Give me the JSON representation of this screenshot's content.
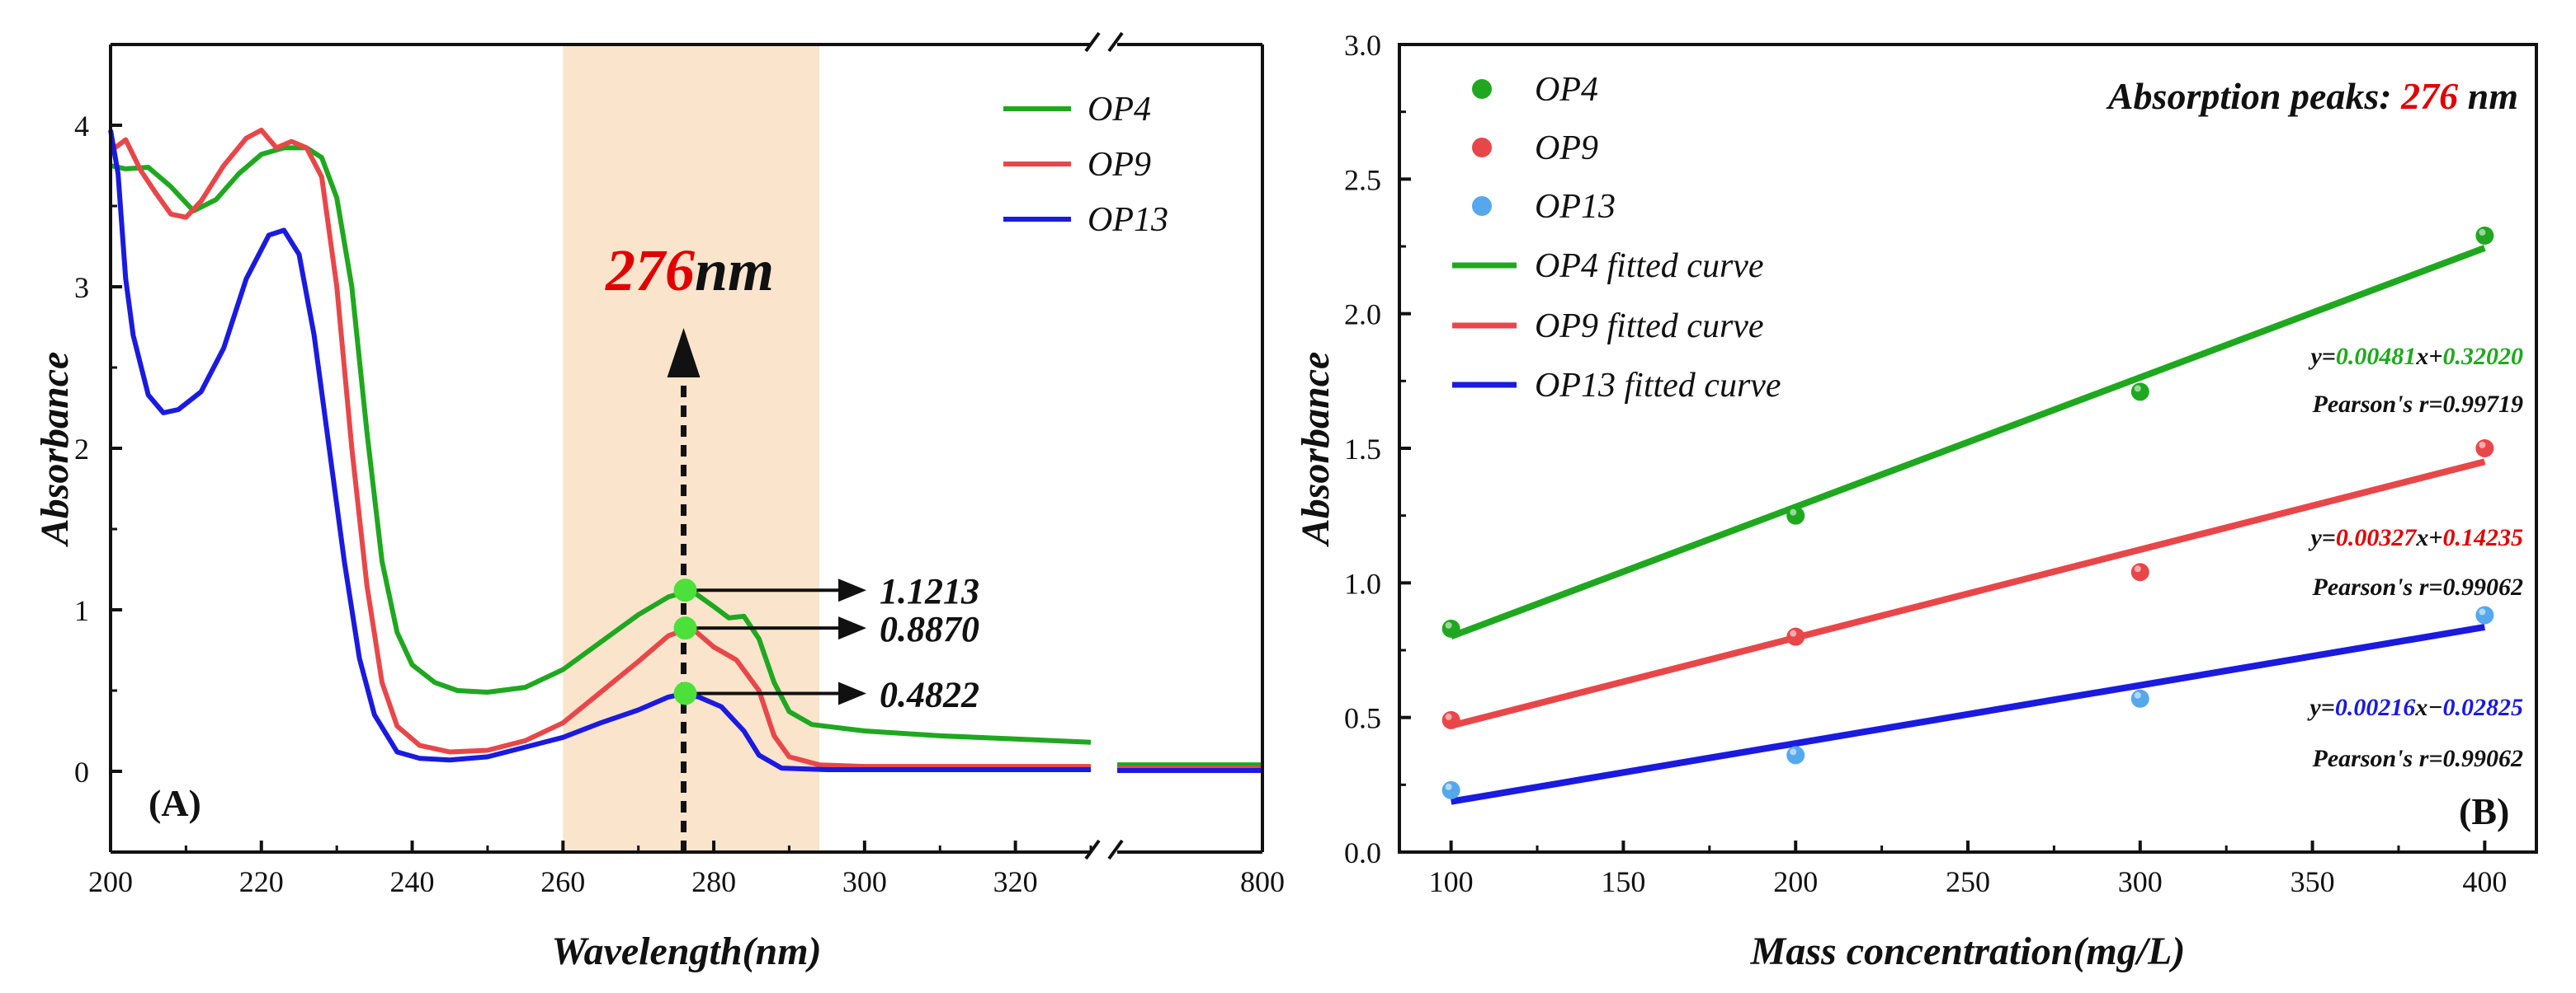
{
  "colors": {
    "green": "#1fa81f",
    "red": "#e8474a",
    "blue": "#1a1ae0",
    "lightblue": "#55a8ec",
    "marker_green": "#4be03a",
    "highlight": "#fae4cc",
    "annotation_red": "#e00000"
  },
  "chart_data": [
    {
      "type": "line",
      "panel": "(A)",
      "xlabel": "Wavelength(nm)",
      "ylabel": "Absorbance",
      "xlim": [
        200,
        330
      ],
      "xlim_break": [
        330,
        800
      ],
      "ylim": [
        -0.5,
        4.5
      ],
      "x_ticks": [
        "200",
        "220",
        "240",
        "260",
        "280",
        "300",
        "320",
        "800"
      ],
      "y_ticks": [
        "0",
        "1",
        "2",
        "3",
        "4"
      ],
      "highlight_range": [
        260,
        294
      ],
      "series": [
        {
          "name": "OP4",
          "color": "#1fa81f",
          "points": [
            [
              200,
              3.75
            ],
            [
              202,
              3.73
            ],
            [
              205,
              3.74
            ],
            [
              208,
              3.62
            ],
            [
              211,
              3.47
            ],
            [
              214,
              3.54
            ],
            [
              217,
              3.7
            ],
            [
              220,
              3.82
            ],
            [
              223,
              3.86
            ],
            [
              226,
              3.86
            ],
            [
              228,
              3.8
            ],
            [
              230,
              3.55
            ],
            [
              232,
              3.0
            ],
            [
              234,
              2.1
            ],
            [
              236,
              1.3
            ],
            [
              238,
              0.86
            ],
            [
              240,
              0.66
            ],
            [
              243,
              0.55
            ],
            [
              246,
              0.5
            ],
            [
              250,
              0.49
            ],
            [
              255,
              0.52
            ],
            [
              260,
              0.63
            ],
            [
              265,
              0.8
            ],
            [
              270,
              0.97
            ],
            [
              274,
              1.08
            ],
            [
              277,
              1.12
            ],
            [
              280,
              1.02
            ],
            [
              282,
              0.95
            ],
            [
              284,
              0.96
            ],
            [
              286,
              0.82
            ],
            [
              288,
              0.55
            ],
            [
              290,
              0.37
            ],
            [
              293,
              0.29
            ],
            [
              300,
              0.25
            ],
            [
              310,
              0.22
            ],
            [
              320,
              0.2
            ],
            [
              330,
              0.18
            ]
          ],
          "tail": [
            [
              340,
              0.04
            ],
            [
              800,
              0.04
            ]
          ]
        },
        {
          "name": "OP9",
          "color": "#e8474a",
          "points": [
            [
              200,
              3.84
            ],
            [
              202,
              3.91
            ],
            [
              204,
              3.72
            ],
            [
              206,
              3.58
            ],
            [
              208,
              3.45
            ],
            [
              210,
              3.43
            ],
            [
              212,
              3.53
            ],
            [
              215,
              3.75
            ],
            [
              218,
              3.92
            ],
            [
              220,
              3.97
            ],
            [
              222,
              3.86
            ],
            [
              224,
              3.9
            ],
            [
              226,
              3.86
            ],
            [
              228,
              3.68
            ],
            [
              230,
              3.0
            ],
            [
              232,
              2.0
            ],
            [
              234,
              1.15
            ],
            [
              236,
              0.55
            ],
            [
              238,
              0.28
            ],
            [
              241,
              0.16
            ],
            [
              245,
              0.12
            ],
            [
              250,
              0.13
            ],
            [
              255,
              0.19
            ],
            [
              260,
              0.3
            ],
            [
              265,
              0.49
            ],
            [
              270,
              0.68
            ],
            [
              274,
              0.84
            ],
            [
              277,
              0.89
            ],
            [
              280,
              0.77
            ],
            [
              283,
              0.69
            ],
            [
              286,
              0.5
            ],
            [
              288,
              0.22
            ],
            [
              290,
              0.09
            ],
            [
              294,
              0.04
            ],
            [
              300,
              0.03
            ],
            [
              330,
              0.03
            ]
          ],
          "tail": [
            [
              340,
              0.02
            ],
            [
              800,
              0.02
            ]
          ]
        },
        {
          "name": "OP13",
          "color": "#1a1ae0",
          "points": [
            [
              200,
              3.97
            ],
            [
              201,
              3.7
            ],
            [
              202,
              3.05
            ],
            [
              203,
              2.7
            ],
            [
              205,
              2.33
            ],
            [
              207,
              2.22
            ],
            [
              209,
              2.24
            ],
            [
              212,
              2.35
            ],
            [
              215,
              2.62
            ],
            [
              218,
              3.05
            ],
            [
              221,
              3.32
            ],
            [
              223,
              3.35
            ],
            [
              225,
              3.2
            ],
            [
              227,
              2.7
            ],
            [
              229,
              2.0
            ],
            [
              231,
              1.3
            ],
            [
              233,
              0.7
            ],
            [
              235,
              0.35
            ],
            [
              238,
              0.12
            ],
            [
              241,
              0.08
            ],
            [
              245,
              0.07
            ],
            [
              250,
              0.09
            ],
            [
              255,
              0.15
            ],
            [
              260,
              0.21
            ],
            [
              265,
              0.3
            ],
            [
              270,
              0.38
            ],
            [
              274,
              0.46
            ],
            [
              276,
              0.48
            ],
            [
              278,
              0.46
            ],
            [
              281,
              0.4
            ],
            [
              284,
              0.25
            ],
            [
              286,
              0.1
            ],
            [
              289,
              0.02
            ],
            [
              295,
              0.01
            ],
            [
              330,
              0.01
            ]
          ],
          "tail": [
            [
              340,
              0.005
            ],
            [
              800,
              0.005
            ]
          ]
        }
      ],
      "legend": [
        "OP4",
        "OP9",
        "OP13"
      ],
      "peak_marker_x": 276,
      "peak_annotation": {
        "value": "276",
        "unit": "nm"
      },
      "peak_values": [
        {
          "series": "OP4",
          "y": 1.1213,
          "label": "1.1213"
        },
        {
          "series": "OP9",
          "y": 0.887,
          "label": "0.8870"
        },
        {
          "series": "OP13",
          "y": 0.4822,
          "label": "0.4822"
        }
      ]
    },
    {
      "type": "scatter",
      "panel": "(B)",
      "title_prefix": "Absorption peaks: ",
      "title_value": "276",
      "title_unit": " nm",
      "xlabel": "Mass concentration(mg/L)",
      "ylabel": "Absorbance",
      "xlim": [
        85,
        415
      ],
      "ylim": [
        0.0,
        3.0
      ],
      "x_ticks": [
        "100",
        "150",
        "200",
        "250",
        "300",
        "350",
        "400"
      ],
      "y_ticks": [
        "0.0",
        "0.5",
        "1.0",
        "1.5",
        "2.0",
        "2.5",
        "3.0"
      ],
      "series": [
        {
          "name": "OP4",
          "color": "#1fa81f",
          "x": [
            100,
            200,
            300,
            400
          ],
          "y": [
            0.83,
            1.25,
            1.71,
            2.29
          ],
          "fit": {
            "label": "OP4 fitted curve",
            "slope": 0.00481,
            "intercept": 0.3202,
            "eq_y": "y=",
            "eq_slope": "0.00481",
            "eq_x": "x+",
            "eq_intercept": "0.32020",
            "pearson": "Pearson's r=0.99719"
          }
        },
        {
          "name": "OP9",
          "color": "#e8474a",
          "x": [
            100,
            200,
            300,
            400
          ],
          "y": [
            0.49,
            0.8,
            1.04,
            1.5
          ],
          "fit": {
            "label": "OP9 fitted curve",
            "slope": 0.00327,
            "intercept": 0.14235,
            "eq_y": "y=",
            "eq_slope": "0.00327",
            "eq_x": "x+",
            "eq_intercept": "0.14235",
            "pearson": "Pearson's r=0.99062"
          }
        },
        {
          "name": "OP13",
          "color": "#55a8ec",
          "line_color": "#1a1ae0",
          "x": [
            100,
            200,
            300,
            400
          ],
          "y": [
            0.23,
            0.36,
            0.57,
            0.88
          ],
          "fit": {
            "label": "OP13 fitted curve",
            "slope": 0.00216,
            "intercept": -0.02825,
            "eq_y": "y=",
            "eq_slope": "0.00216",
            "eq_x": "x−",
            "eq_intercept": "0.02825",
            "pearson": "Pearson's r=0.99062"
          }
        }
      ]
    }
  ]
}
